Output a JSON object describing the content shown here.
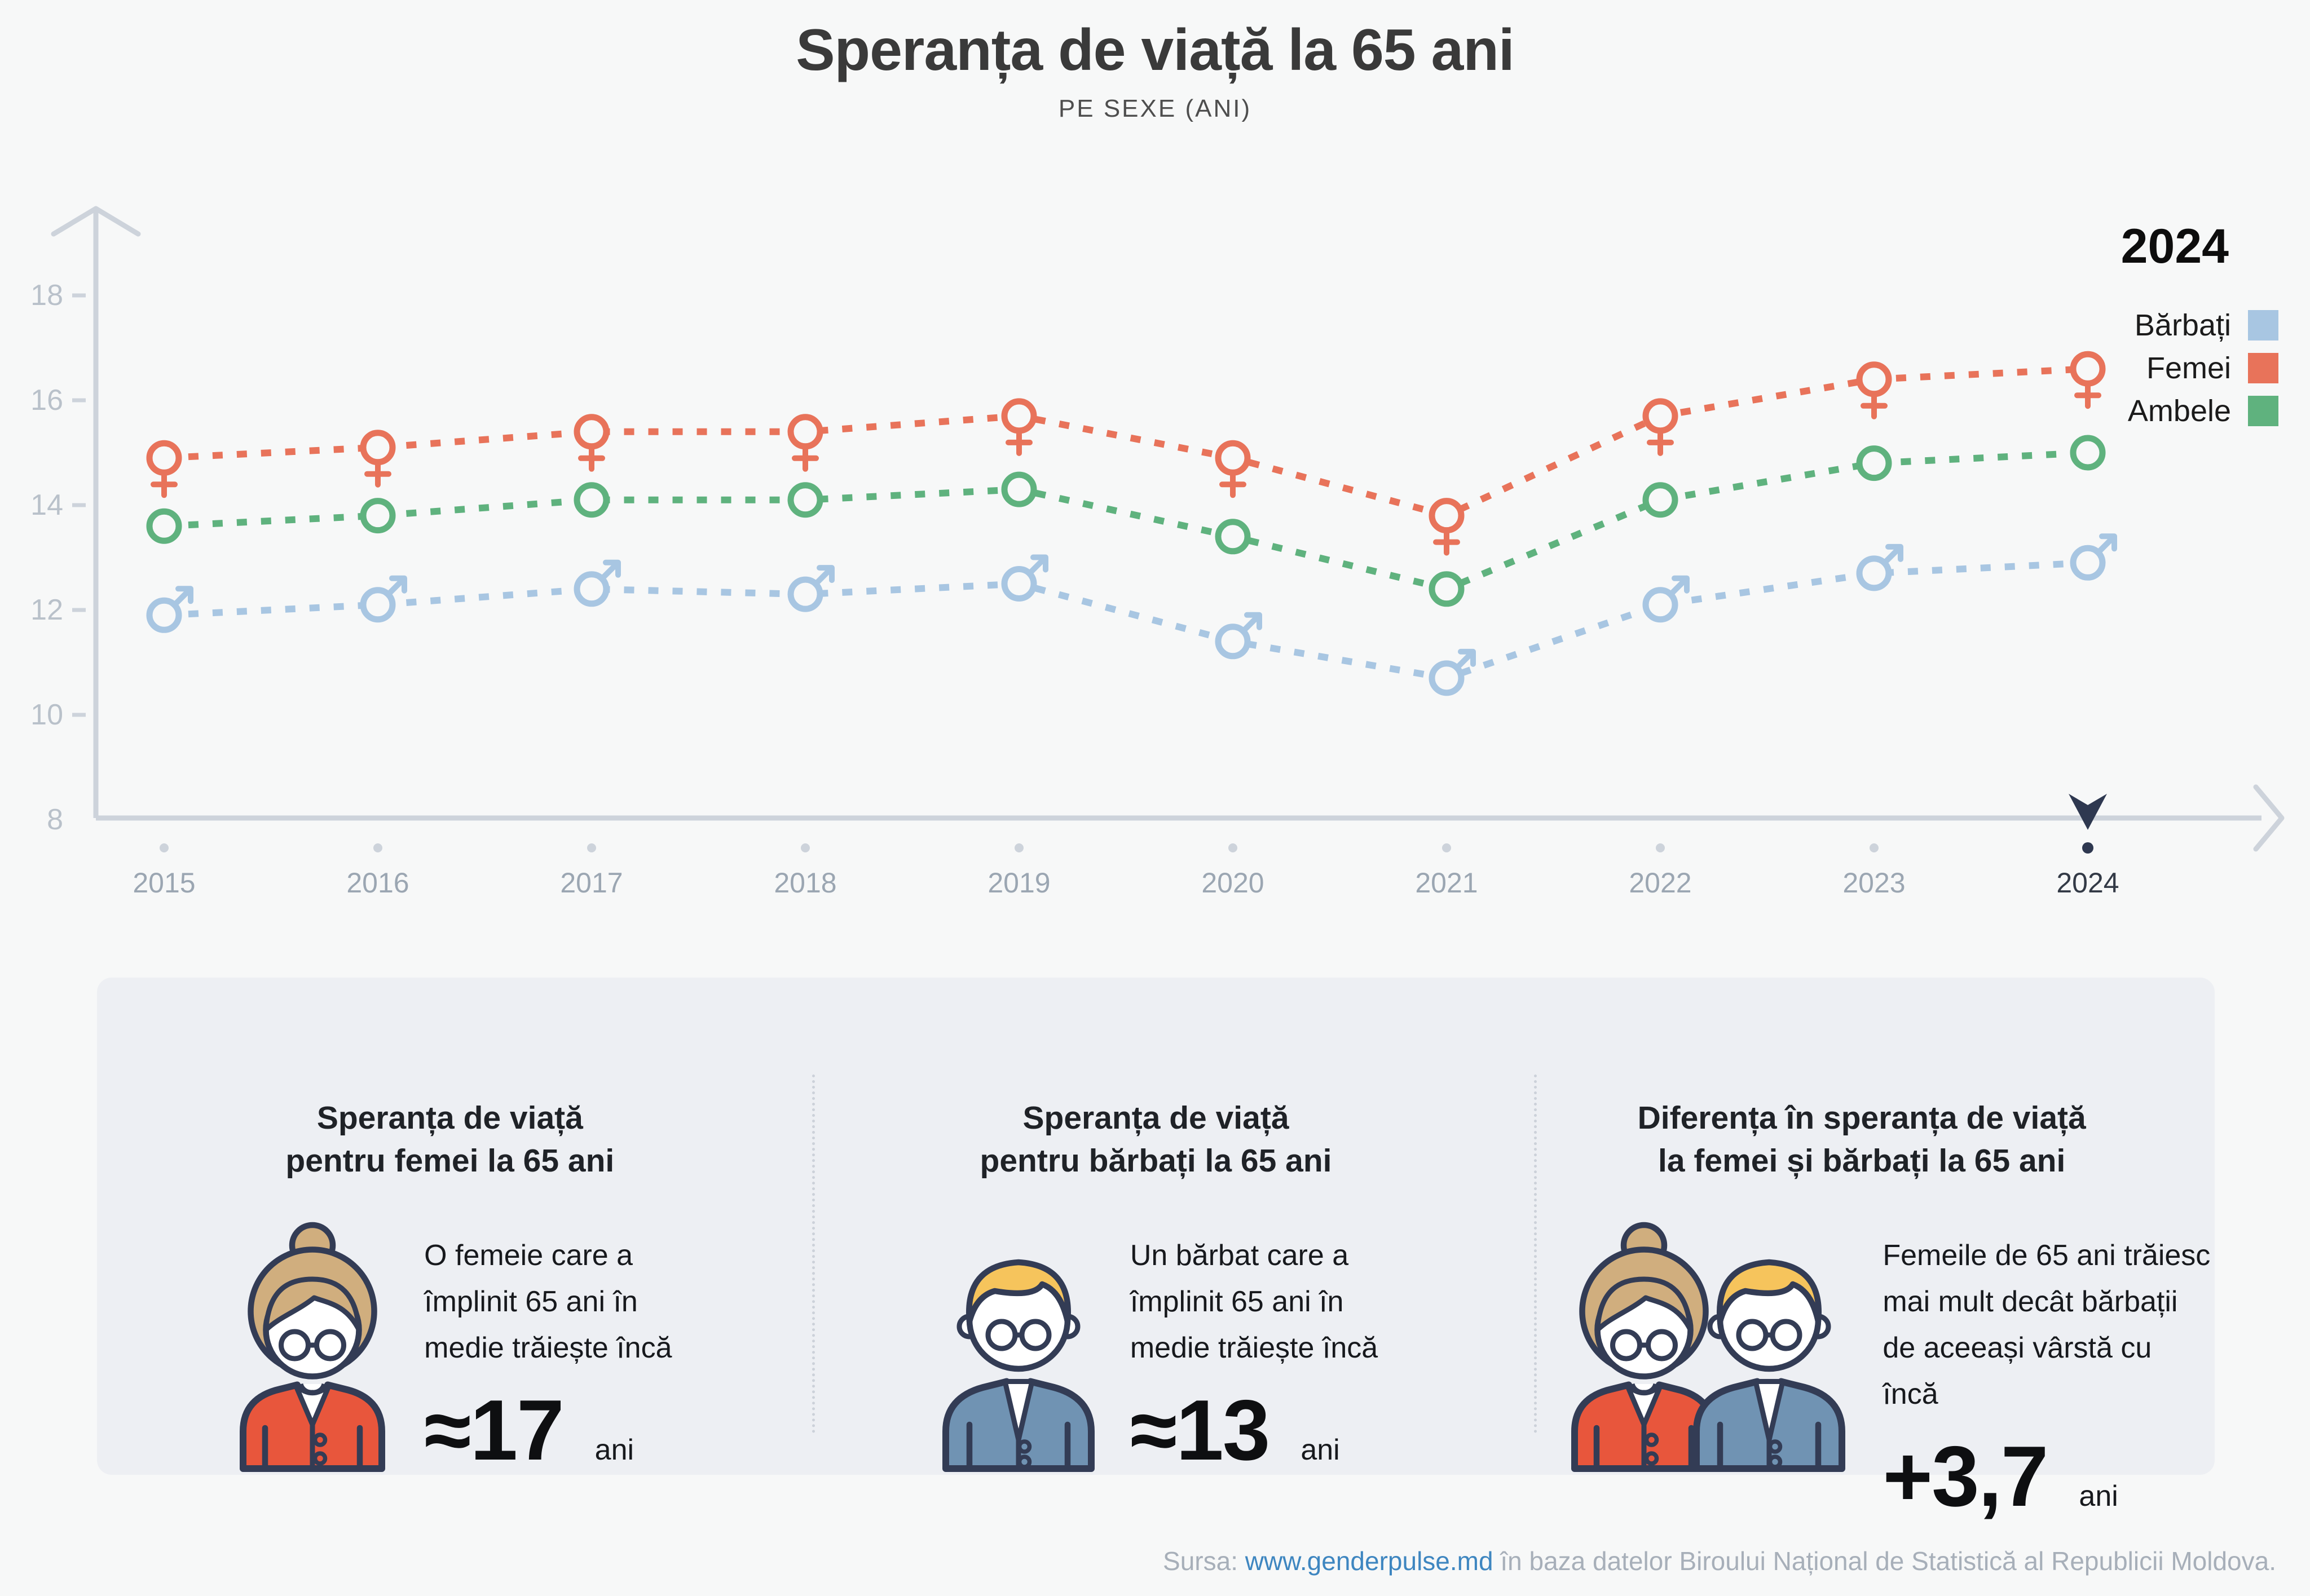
{
  "title": "Speranța de viață la 65 ani",
  "subtitle": "PE SEXE (ANI)",
  "legend": {
    "header": "2024",
    "items": [
      {
        "label": "Bărbați",
        "color": "#a8c6e2"
      },
      {
        "label": "Femei",
        "color": "#e8735a"
      },
      {
        "label": "Ambele",
        "color": "#5fb27e"
      }
    ]
  },
  "chart_data": {
    "type": "line",
    "title": "Speranța de viață la 65 ani",
    "subtitle": "PE SEXE (ANI)",
    "categories": [
      "2015",
      "2016",
      "2017",
      "2018",
      "2019",
      "2020",
      "2021",
      "2022",
      "2023",
      "2024"
    ],
    "series": [
      {
        "name": "Femei",
        "marker": "female",
        "color": "#e8735a",
        "values": [
          14.9,
          15.1,
          15.4,
          15.4,
          15.7,
          14.9,
          13.8,
          15.7,
          16.4,
          16.6
        ]
      },
      {
        "name": "Ambele",
        "marker": "both",
        "color": "#5fb27e",
        "values": [
          13.6,
          13.8,
          14.1,
          14.1,
          14.3,
          13.4,
          12.4,
          14.1,
          14.8,
          15.0
        ]
      },
      {
        "name": "Bărbați",
        "marker": "male",
        "color": "#a8c6e2",
        "values": [
          11.9,
          12.1,
          12.4,
          12.3,
          12.5,
          11.4,
          10.7,
          12.1,
          12.7,
          12.9
        ]
      }
    ],
    "ylim": [
      8,
      18
    ],
    "yticks": [
      8,
      10,
      12,
      14,
      16,
      18
    ],
    "selected_year": "2024",
    "grid": false,
    "line_style": "dashed",
    "legend_position": "top-right"
  },
  "cards": [
    {
      "icon": "elderly-woman",
      "title_lines": [
        "Speranța de viață",
        "pentru femei la 65 ani"
      ],
      "text_lines": [
        "O femeie care a",
        "împlinit 65 ani în",
        "medie trăiește încă"
      ],
      "value": "≈17",
      "unit": "ani"
    },
    {
      "icon": "elderly-man",
      "title_lines": [
        "Speranța de viață",
        "pentru bărbați la 65 ani"
      ],
      "text_lines": [
        "Un bărbat care a",
        "împlinit 65 ani în",
        "medie trăiește încă"
      ],
      "value": "≈13",
      "unit": "ani"
    },
    {
      "icon": "elderly-woman-and-man",
      "title_lines": [
        "Diferența în speranța de viață",
        "la femei și bărbați la 65 ani"
      ],
      "text_lines": [
        "Femeile de 65 ani trăiesc",
        "mai mult decât bărbații",
        "de aceeași vârstă cu încă"
      ],
      "value": "+3,7",
      "unit": "ani"
    }
  ],
  "footer": {
    "prefix": "Sursa:",
    "link": "www.genderpulse.md",
    "suffix": "în baza datelor Biroului Național de Statistică al Republicii Moldova."
  },
  "colors": {
    "background": "#f7f8f8",
    "card_background": "#edeff3",
    "divider": "#ccd1d9",
    "axis": "#cdd3db",
    "tick_label": "#b9c1ca",
    "year_label": "#9ba6b2",
    "selected_year_label": "#333a46",
    "pointer": "#2e3850",
    "title": "#3a3a3a",
    "footer_text": "#a7afb9",
    "link": "#3e86c0",
    "icon_outline": "#333c55",
    "woman_hair": "#d0ae7e",
    "woman_cardigan": "#e8563c",
    "man_hair": "#f6c45c",
    "man_jacket": "#7093b3"
  }
}
